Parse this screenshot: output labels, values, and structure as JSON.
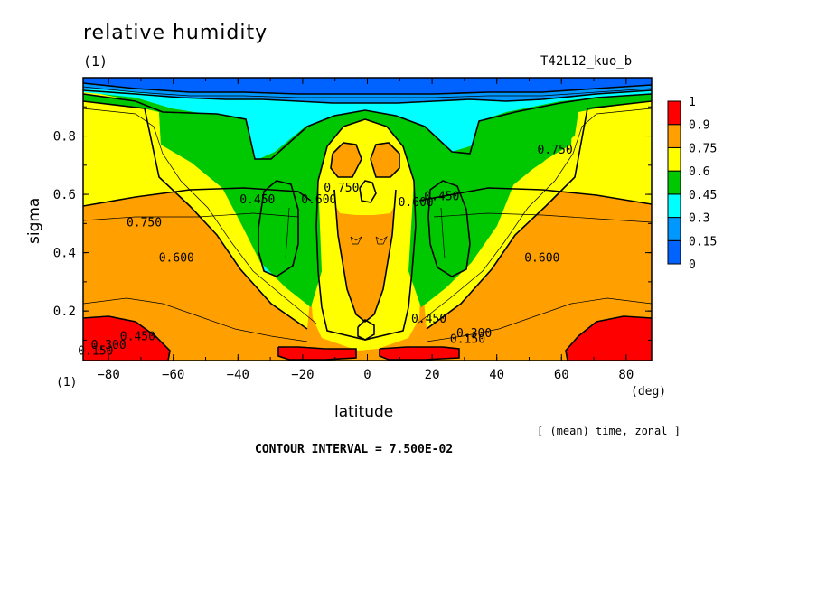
{
  "chart_data": {
    "type": "contour",
    "title": "relative humidity",
    "unit_label_top": "(1)",
    "unit_label_bottom": "(1)",
    "run_id": "T42L12_kuo_b",
    "xlabel": "latitude",
    "xunit": "(deg)",
    "ylabel": "sigma",
    "xlim": [
      -87.86,
      87.86
    ],
    "ylim": [
      1.0,
      0.03
    ],
    "xticks": [
      -80,
      -60,
      -40,
      -20,
      0,
      20,
      40,
      60,
      80
    ],
    "yticks": [
      0.2,
      0.4,
      0.6,
      0.8
    ],
    "averaging_note": "[ (mean) time, zonal ]",
    "contour_interval_text": "CONTOUR INTERVAL = 7.500E-02",
    "colorbar": {
      "levels": [
        0,
        0.15,
        0.3,
        0.45,
        0.6,
        0.75,
        0.9,
        1
      ],
      "colors": [
        "#0063ff",
        "#0097ff",
        "#00ffff",
        "#00c800",
        "#ffff00",
        "#ffa000",
        "#ff0000"
      ]
    },
    "contour_labels": [
      {
        "text": "0.150",
        "x": -84,
        "y": 0.05
      },
      {
        "text": "0.300",
        "x": -80,
        "y": 0.07
      },
      {
        "text": "0.450",
        "x": -71,
        "y": 0.1
      },
      {
        "text": "0.600",
        "x": -59,
        "y": 0.37
      },
      {
        "text": "0.750",
        "x": -69,
        "y": 0.49
      },
      {
        "text": "0.450",
        "x": -34,
        "y": 0.57
      },
      {
        "text": "0.600",
        "x": -15,
        "y": 0.57
      },
      {
        "text": "0.750",
        "x": -8,
        "y": 0.61
      },
      {
        "text": "0.450",
        "x": 19,
        "y": 0.16
      },
      {
        "text": "0.150",
        "x": 31,
        "y": 0.09
      },
      {
        "text": "0.300",
        "x": 33,
        "y": 0.11
      },
      {
        "text": "0.600",
        "x": 15,
        "y": 0.56
      },
      {
        "text": "0.450",
        "x": 23,
        "y": 0.58
      },
      {
        "text": "0.600",
        "x": 54,
        "y": 0.37
      },
      {
        "text": "0.750",
        "x": 58,
        "y": 0.74
      }
    ]
  }
}
